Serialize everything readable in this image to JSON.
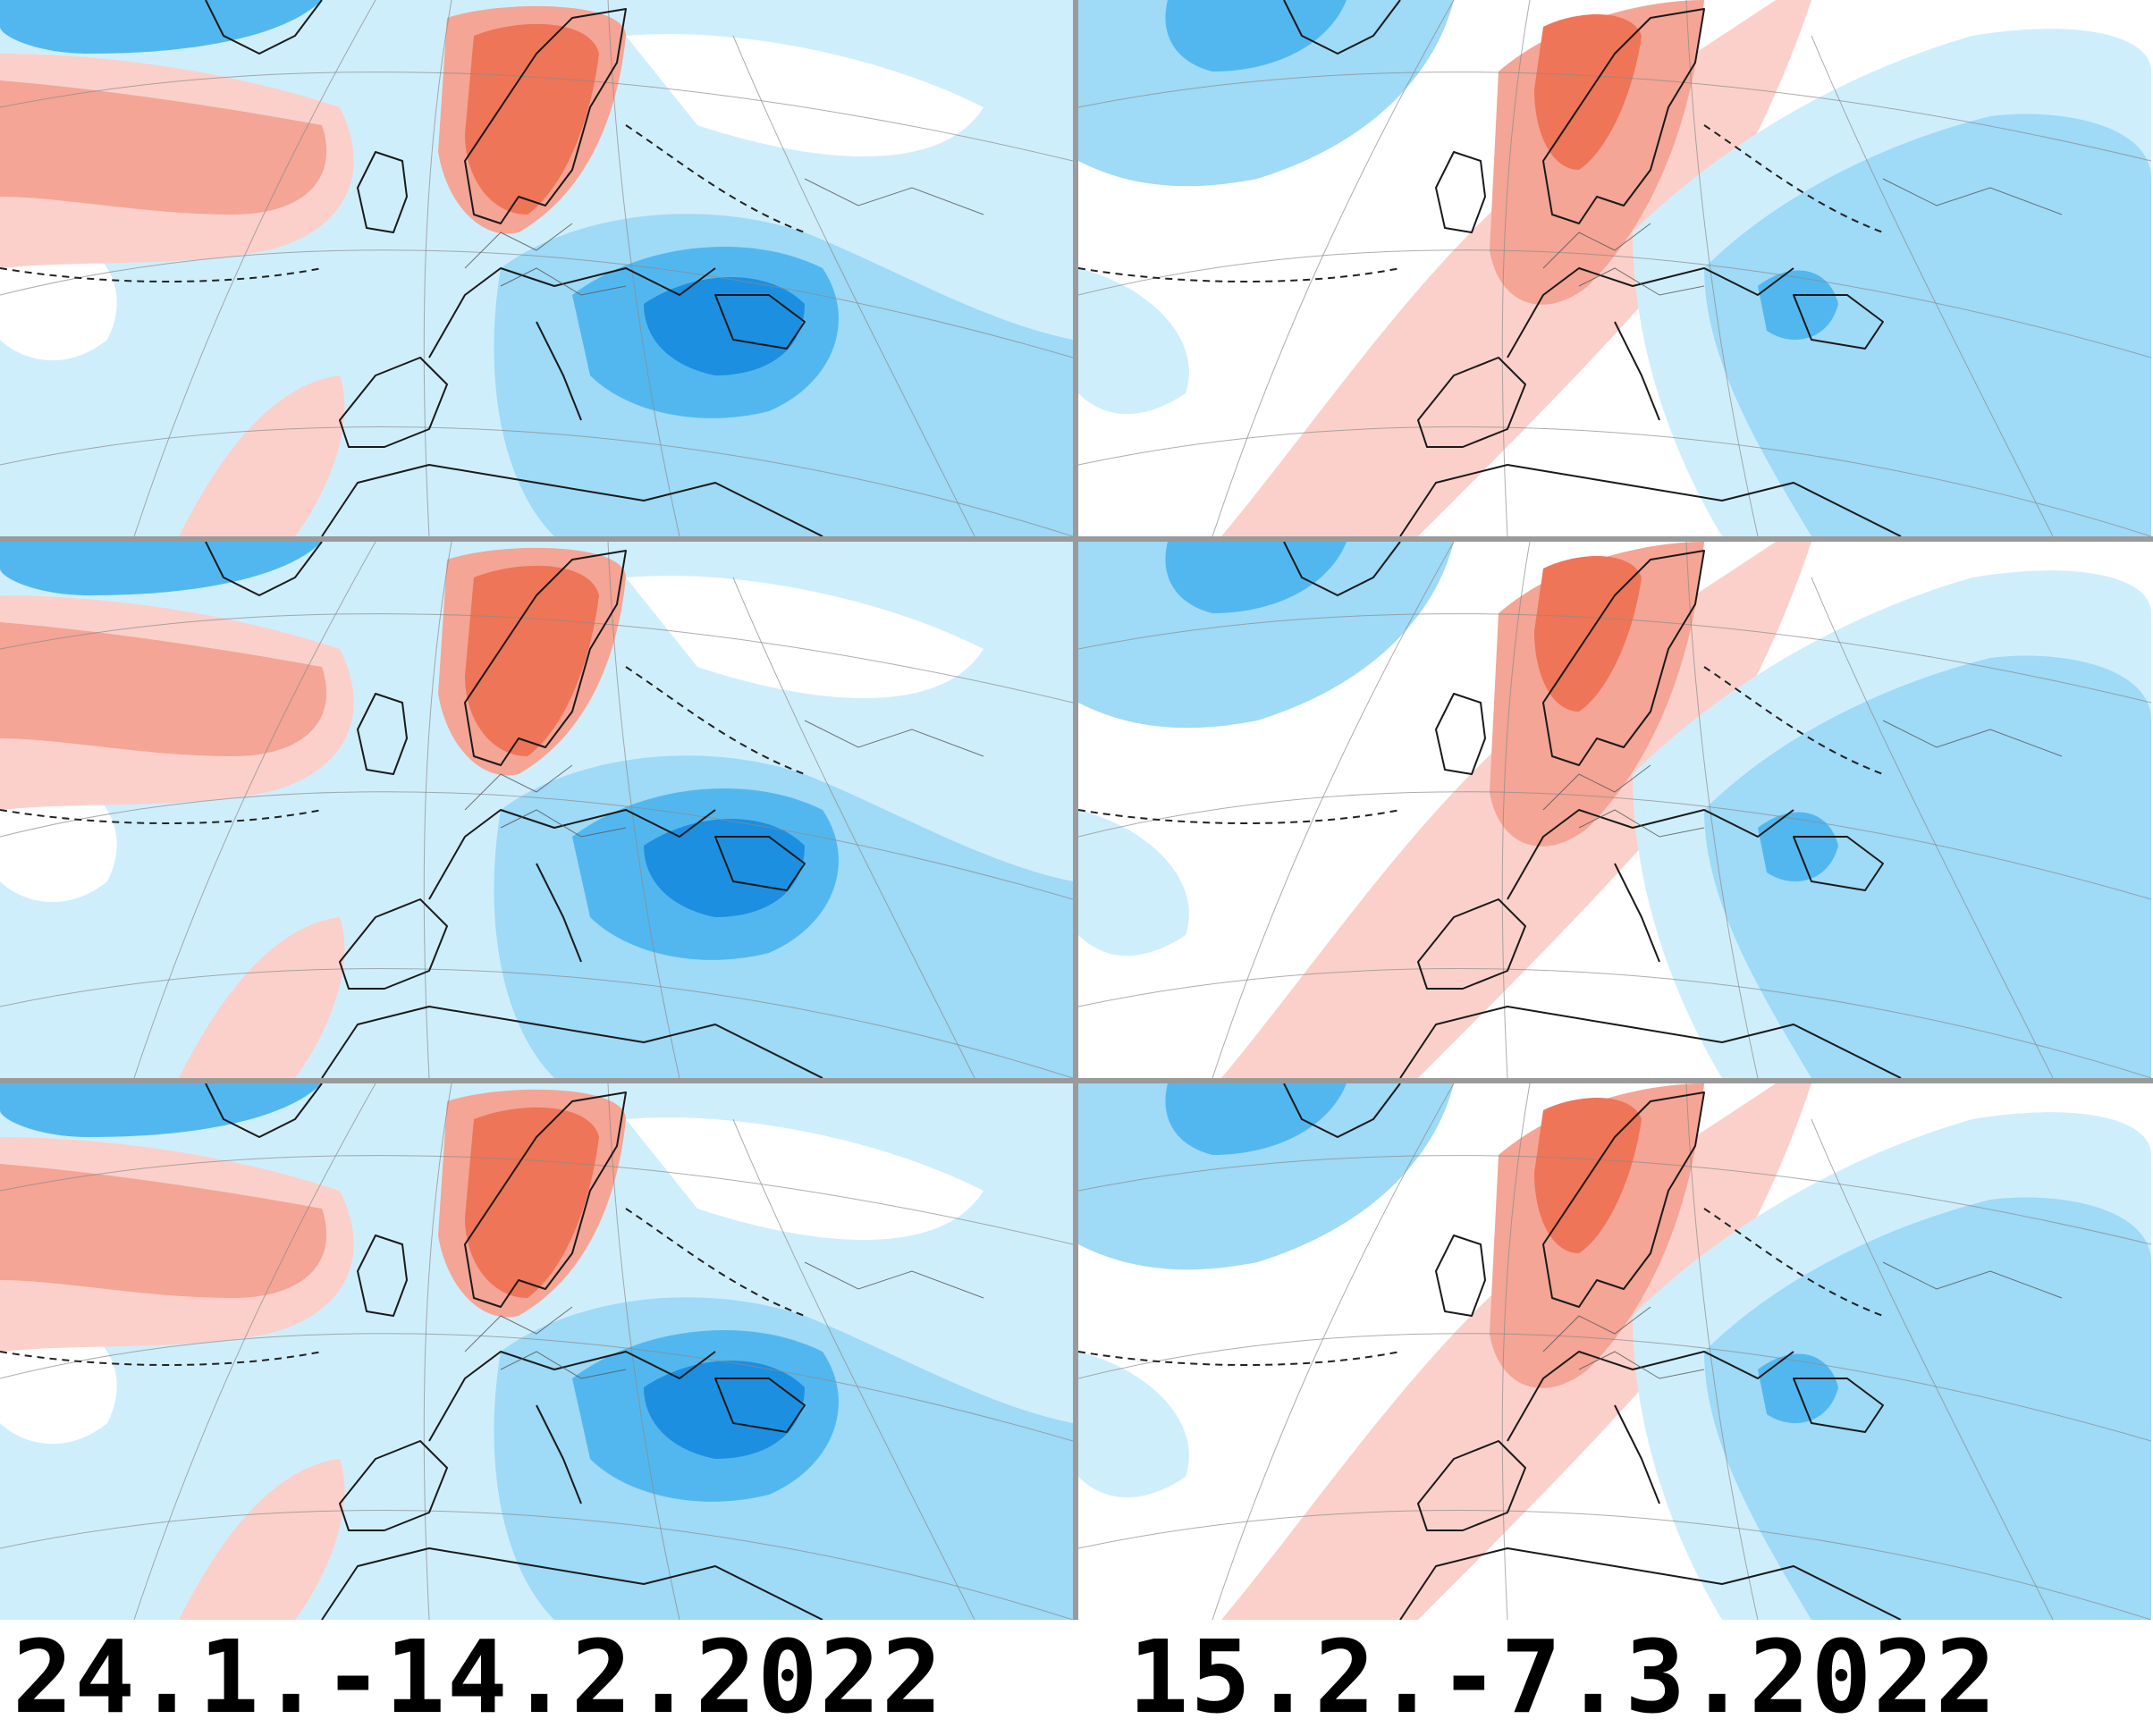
{
  "palette": {
    "blue_1": "#cfeefc",
    "blue_2": "#9fdaf7",
    "blue_3": "#53b7ef",
    "blue_4": "#1d8fe0",
    "blue_5": "#0b63b3",
    "red_1": "#fbd0ca",
    "red_2": "#f4a595",
    "red_3": "#ee7558",
    "red_4": "#f0421e"
  },
  "captions": {
    "left": "24.1.-14.2.2022",
    "right": "15.2.-7.3.2022"
  },
  "panels": [
    {
      "id": "r1-left",
      "column": "left",
      "row": 1,
      "pattern": "A"
    },
    {
      "id": "r1-right",
      "column": "right",
      "row": 1,
      "pattern": "B"
    },
    {
      "id": "r2-left",
      "column": "left",
      "row": 2,
      "pattern": "A"
    },
    {
      "id": "r2-right",
      "column": "right",
      "row": 2,
      "pattern": "B"
    },
    {
      "id": "r3-left",
      "column": "left",
      "row": 3,
      "pattern": "A"
    },
    {
      "id": "r3-right",
      "column": "right",
      "row": 3,
      "pattern": "B"
    }
  ]
}
